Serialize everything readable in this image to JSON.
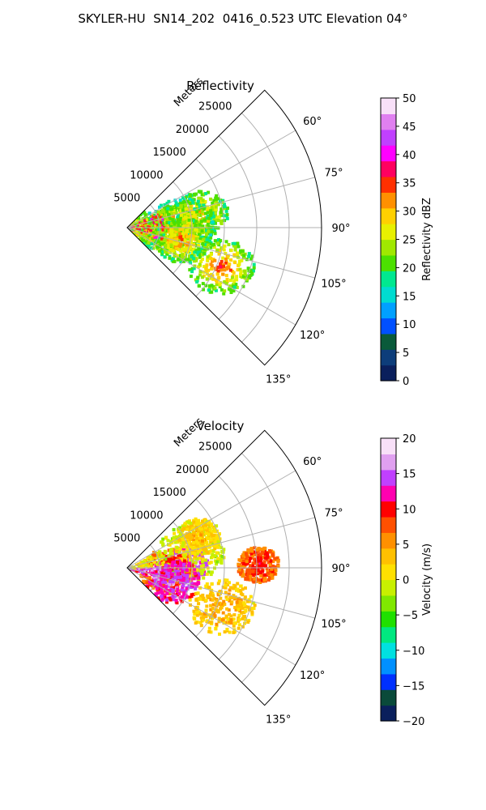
{
  "figure": {
    "suptitle": "SKYLER-HU  SN14_202  0416_0.523 UTC Elevation 04°"
  },
  "chart_data": [
    {
      "type": "heatmap",
      "projection": "polar sector",
      "title": "Reflectivity",
      "range_label": "Meters",
      "range_ticks": [
        5000,
        10000,
        15000,
        20000,
        25000
      ],
      "rlim": [
        0,
        30000
      ],
      "azimuth_ticks": [
        "60°",
        "75°",
        "90°",
        "105°",
        "120°",
        "135°"
      ],
      "azimuth_range_deg": [
        45,
        135
      ],
      "grid": true,
      "colorbar": {
        "label": "Reflectivity dBZ",
        "ticks": [
          0,
          5,
          10,
          15,
          20,
          25,
          30,
          35,
          40,
          45,
          50
        ],
        "range": [
          0,
          50
        ],
        "colors": [
          "#0a1f5c",
          "#0d3d7a",
          "#0a5a3a",
          "#0050ff",
          "#00a0ff",
          "#00dcd0",
          "#00e890",
          "#4ce000",
          "#a0e800",
          "#e8f000",
          "#ffd000",
          "#ff9000",
          "#ff3000",
          "#ff0060",
          "#ff00ff",
          "#c040ff",
          "#e080f0",
          "#f8e0f8"
        ]
      },
      "echo_cells": [
        {
          "az": 82,
          "r": 7500,
          "dbz": 36
        },
        {
          "az": 78,
          "r": 11500,
          "dbz": 33
        },
        {
          "az": 86,
          "r": 8500,
          "dbz": 30
        },
        {
          "az": 98,
          "r": 5000,
          "dbz": 38
        },
        {
          "az": 102,
          "r": 8500,
          "dbz": 34
        },
        {
          "az": 112,
          "r": 15500,
          "dbz": 36
        },
        {
          "az": 92,
          "r": 2000,
          "dbz": 30
        }
      ]
    },
    {
      "type": "heatmap",
      "projection": "polar sector",
      "title": "Velocity",
      "range_label": "Meters",
      "range_ticks": [
        5000,
        10000,
        15000,
        20000,
        25000
      ],
      "rlim": [
        0,
        30000
      ],
      "azimuth_ticks": [
        "60°",
        "75°",
        "90°",
        "105°",
        "120°",
        "135°"
      ],
      "azimuth_range_deg": [
        45,
        135
      ],
      "grid": true,
      "colorbar": {
        "label": "Velocity (m/s)",
        "ticks": [
          -20,
          -15,
          -10,
          -5,
          0,
          5,
          10,
          15,
          20
        ],
        "range": [
          -20,
          20
        ],
        "colors": [
          "#0a1f5c",
          "#0a4a3a",
          "#0030ff",
          "#0090ff",
          "#00e0e0",
          "#00e880",
          "#20e000",
          "#80e800",
          "#c8f000",
          "#ffe000",
          "#ffc000",
          "#ff9000",
          "#ff5000",
          "#ff0000",
          "#ff00b0",
          "#c040ff",
          "#e0a0f0",
          "#f8e0f8"
        ]
      },
      "echo_cells": [
        {
          "az": 85,
          "r": 9000,
          "vel": 17
        },
        {
          "az": 93,
          "r": 6000,
          "vel": 10
        },
        {
          "az": 75,
          "r": 10000,
          "vel": 2
        },
        {
          "az": 65,
          "r": 12000,
          "vel": 4
        },
        {
          "az": 105,
          "r": 7000,
          "vel": 15
        },
        {
          "az": 112,
          "r": 15500,
          "vel": 5
        },
        {
          "az": 88,
          "r": 20000,
          "vel": 10
        }
      ]
    }
  ]
}
